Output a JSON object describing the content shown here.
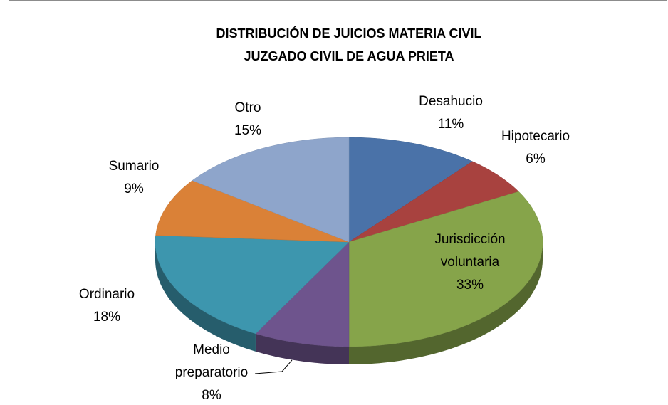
{
  "chart_data": {
    "type": "pie",
    "title": [
      "DISTRIBUCIÓN DE JUICIOS MATERIA CIVIL",
      "JUZGADO CIVIL DE AGUA PRIETA"
    ],
    "categories": [
      "Desahucio",
      "Hipotecario",
      "Jurisdicción voluntaria",
      "Medio preparatorio",
      "Ordinario",
      "Sumario",
      "Otro"
    ],
    "values": [
      11,
      6,
      33,
      8,
      18,
      9,
      15
    ],
    "value_labels": [
      "11%",
      "6%",
      "33%",
      "8%",
      "18%",
      "9%",
      "15%"
    ],
    "colors": [
      "#4a72a8",
      "#a8423f",
      "#86a44a",
      "#6e548d",
      "#3d96ae",
      "#da8137",
      "#8ea5cb"
    ]
  }
}
